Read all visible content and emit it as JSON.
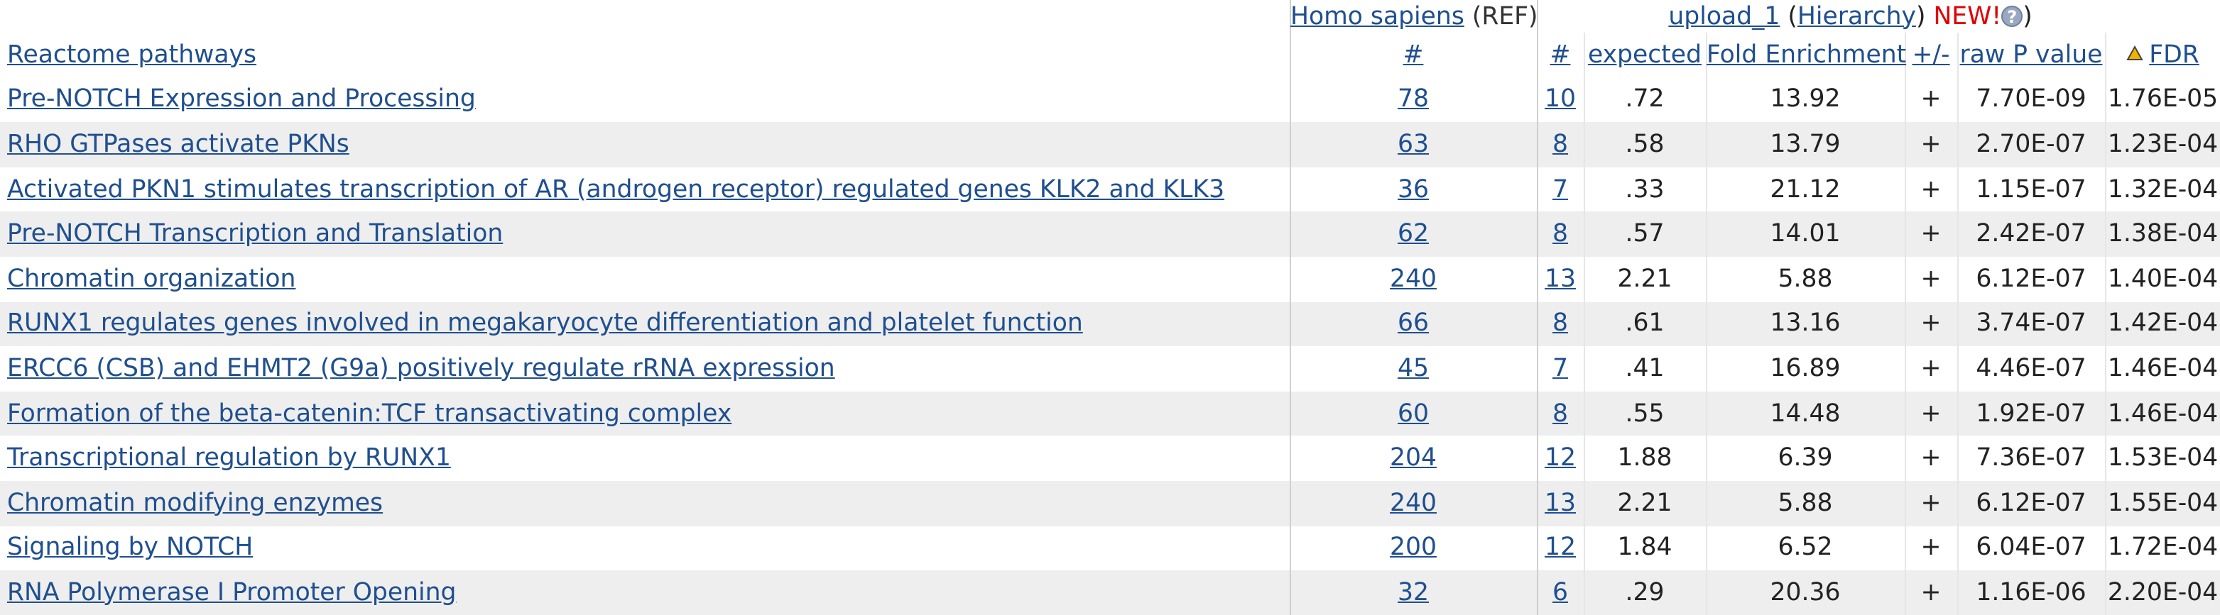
{
  "header": {
    "species_link": "Homo sapiens",
    "species_ref": "(REF)",
    "upload_link": "upload_1",
    "paren_open": "(",
    "hierarchy_link": "Hierarchy",
    "paren_close": ")",
    "new_label": "NEW!",
    "help_glyph": "?",
    "close_paren": ")"
  },
  "columns": {
    "pathways": "Reactome pathways",
    "ref_count": "#",
    "count": "#",
    "expected": "expected",
    "fold": "Fold Enrichment",
    "plusminus": "+/-",
    "raw_p": "raw P value",
    "fdr": "FDR"
  },
  "icons": {
    "help": "help-icon",
    "sort": "warning-triangle-sort-icon"
  },
  "rows": [
    {
      "name": "Pre-NOTCH Expression and Processing",
      "ref": "78",
      "count": "10",
      "expected": ".72",
      "fold": "13.92",
      "pm": "+",
      "raw": "7.70E-09",
      "fdr": "1.76E-05"
    },
    {
      "name": "RHO GTPases activate PKNs",
      "ref": "63",
      "count": "8",
      "expected": ".58",
      "fold": "13.79",
      "pm": "+",
      "raw": "2.70E-07",
      "fdr": "1.23E-04"
    },
    {
      "name": "Activated PKN1 stimulates transcription of AR (androgen receptor) regulated genes KLK2 and KLK3",
      "ref": "36",
      "count": "7",
      "expected": ".33",
      "fold": "21.12",
      "pm": "+",
      "raw": "1.15E-07",
      "fdr": "1.32E-04"
    },
    {
      "name": "Pre-NOTCH Transcription and Translation",
      "ref": "62",
      "count": "8",
      "expected": ".57",
      "fold": "14.01",
      "pm": "+",
      "raw": "2.42E-07",
      "fdr": "1.38E-04"
    },
    {
      "name": "Chromatin organization",
      "ref": "240",
      "count": "13",
      "expected": "2.21",
      "fold": "5.88",
      "pm": "+",
      "raw": "6.12E-07",
      "fdr": "1.40E-04"
    },
    {
      "name": "RUNX1 regulates genes involved in megakaryocyte differentiation and platelet function",
      "ref": "66",
      "count": "8",
      "expected": ".61",
      "fold": "13.16",
      "pm": "+",
      "raw": "3.74E-07",
      "fdr": "1.42E-04"
    },
    {
      "name": "ERCC6 (CSB) and EHMT2 (G9a) positively regulate rRNA expression",
      "ref": "45",
      "count": "7",
      "expected": ".41",
      "fold": "16.89",
      "pm": "+",
      "raw": "4.46E-07",
      "fdr": "1.46E-04"
    },
    {
      "name": "Formation of the beta-catenin:TCF transactivating complex",
      "ref": "60",
      "count": "8",
      "expected": ".55",
      "fold": "14.48",
      "pm": "+",
      "raw": "1.92E-07",
      "fdr": "1.46E-04"
    },
    {
      "name": "Transcriptional regulation by RUNX1",
      "ref": "204",
      "count": "12",
      "expected": "1.88",
      "fold": "6.39",
      "pm": "+",
      "raw": "7.36E-07",
      "fdr": "1.53E-04"
    },
    {
      "name": "Chromatin modifying enzymes",
      "ref": "240",
      "count": "13",
      "expected": "2.21",
      "fold": "5.88",
      "pm": "+",
      "raw": "6.12E-07",
      "fdr": "1.55E-04"
    },
    {
      "name": "Signaling by NOTCH",
      "ref": "200",
      "count": "12",
      "expected": "1.84",
      "fold": "6.52",
      "pm": "+",
      "raw": "6.04E-07",
      "fdr": "1.72E-04"
    },
    {
      "name": "RNA Polymerase I Promoter Opening",
      "ref": "32",
      "count": "6",
      "expected": ".29",
      "fold": "20.36",
      "pm": "+",
      "raw": "1.16E-06",
      "fdr": "2.20E-04"
    }
  ]
}
